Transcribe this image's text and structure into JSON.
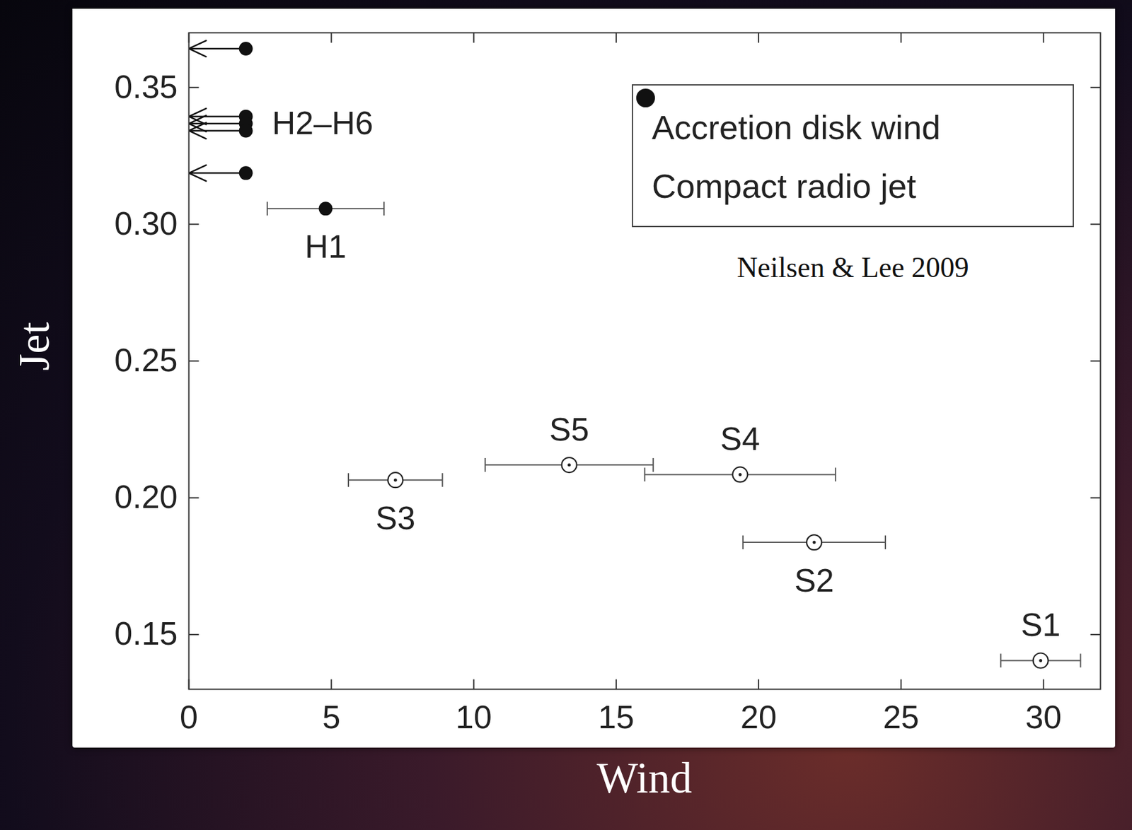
{
  "chart_data": {
    "type": "scatter",
    "x_label": "Wind",
    "y_label": "Jet",
    "xlim": [
      0,
      32
    ],
    "ylim": [
      0.13,
      0.37
    ],
    "xticks": [
      0,
      5,
      10,
      15,
      20,
      25,
      30
    ],
    "yticks": [
      0.15,
      {
        "value": 0.2,
        "label": "0.20"
      },
      0.25,
      {
        "value": 0.3,
        "label": "0.30"
      },
      0.35
    ],
    "legend": "upper right",
    "annotations": [
      "H2–H6",
      "Neilsen & Lee 2009"
    ],
    "series": [
      {
        "name": "Accretion disk wind",
        "color": "#222222",
        "marker": "open circle",
        "point_labels": [
          "S1",
          "S2",
          "S3",
          "S4",
          "S5"
        ],
        "x": [
          29.9,
          21.95,
          7.25,
          19.35,
          13.35
        ],
        "values": [
          0.1405,
          0.1837,
          0.2065,
          0.2085,
          0.212
        ],
        "xerr": [
          1.4,
          2.5,
          1.65,
          3.35,
          2.95
        ],
        "x_upper_limit": [
          false,
          false,
          false,
          false,
          false
        ]
      },
      {
        "name": "Compact radio jet",
        "color": "#111111",
        "marker": "filled circle",
        "point_labels": [
          "H1",
          null,
          null,
          null,
          null,
          null
        ],
        "x": [
          4.8,
          2,
          2,
          2,
          2,
          2
        ],
        "values": [
          0.3057,
          0.3642,
          0.3394,
          0.3368,
          0.3342,
          0.3187
        ],
        "xerr": [
          2.05,
          null,
          null,
          null,
          null,
          null
        ],
        "x_upper_limit": [
          false,
          true,
          true,
          true,
          true,
          true
        ]
      }
    ]
  }
}
